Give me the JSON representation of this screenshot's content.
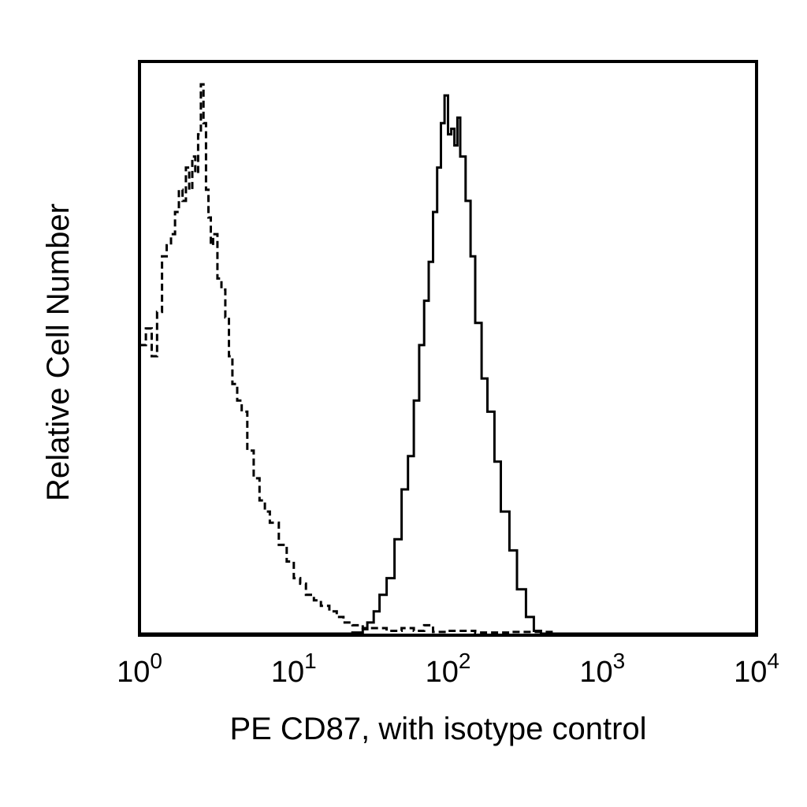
{
  "chart_data": {
    "type": "line",
    "xlabel": "PE CD87, with isotype control",
    "ylabel": "Relative Cell Number",
    "x_scale": "log",
    "xlim": [
      1,
      10000
    ],
    "ylim": [
      0,
      1
    ],
    "grid": false,
    "legend": "none",
    "x_ticks": [
      {
        "value": 1,
        "base": "10",
        "exp": "0"
      },
      {
        "value": 10,
        "base": "10",
        "exp": "1"
      },
      {
        "value": 100,
        "base": "10",
        "exp": "2"
      },
      {
        "value": 1000,
        "base": "10",
        "exp": "3"
      },
      {
        "value": 10000,
        "base": "10",
        "exp": "4"
      }
    ],
    "series": [
      {
        "style": "dashed",
        "color": "#000000",
        "x": [
          1.0,
          1.1,
          1.2,
          1.3,
          1.4,
          1.5,
          1.6,
          1.7,
          1.8,
          1.9,
          2.0,
          2.1,
          2.2,
          2.3,
          2.4,
          2.5,
          2.6,
          2.7,
          2.8,
          2.9,
          3.0,
          3.2,
          3.4,
          3.6,
          3.8,
          4.0,
          4.3,
          4.6,
          5.0,
          5.5,
          6.0,
          6.5,
          7.0,
          7.5,
          8.0,
          9.0,
          10.0,
          11.0,
          12.0,
          13.5,
          15.0,
          17.0,
          19.0,
          21.0,
          24.0,
          28.0,
          33.0,
          40.0,
          50.0,
          60.0,
          70.0,
          80.0,
          100.0,
          150.0,
          250.0,
          500.0,
          1000.0,
          10000.0
        ],
        "y": [
          0.52,
          0.55,
          0.5,
          0.58,
          0.68,
          0.7,
          0.72,
          0.76,
          0.8,
          0.78,
          0.84,
          0.8,
          0.86,
          0.83,
          0.9,
          0.99,
          0.92,
          0.8,
          0.75,
          0.7,
          0.72,
          0.64,
          0.62,
          0.57,
          0.5,
          0.45,
          0.42,
          0.4,
          0.33,
          0.28,
          0.24,
          0.22,
          0.2,
          0.2,
          0.16,
          0.13,
          0.1,
          0.09,
          0.07,
          0.06,
          0.05,
          0.04,
          0.03,
          0.02,
          0.015,
          0.01,
          0.01,
          0.005,
          0.01,
          0.005,
          0.015,
          0.003,
          0.005,
          0.002,
          0.003,
          0.0,
          0.0,
          0.0
        ]
      },
      {
        "style": "solid",
        "color": "#000000",
        "x": [
          1.0,
          10.0,
          20.0,
          24.0,
          28.0,
          30.0,
          33.0,
          36.0,
          40.0,
          45.0,
          50.0,
          55.0,
          60.0,
          65.0,
          70.0,
          75.0,
          80.0,
          85.0,
          90.0,
          95.0,
          100.0,
          105.0,
          110.0,
          115.0,
          120.0,
          130.0,
          140.0,
          150.0,
          165.0,
          180.0,
          200.0,
          220.0,
          250.0,
          280.0,
          320.0,
          360.0,
          400.0,
          1000.0,
          10000.0
        ],
        "y": [
          0.0,
          0.0,
          0.0,
          0.002,
          0.008,
          0.02,
          0.04,
          0.07,
          0.1,
          0.17,
          0.26,
          0.32,
          0.42,
          0.52,
          0.6,
          0.67,
          0.76,
          0.84,
          0.92,
          0.97,
          0.9,
          0.91,
          0.88,
          0.93,
          0.86,
          0.78,
          0.68,
          0.56,
          0.46,
          0.4,
          0.31,
          0.22,
          0.15,
          0.08,
          0.03,
          0.005,
          0.0,
          0.0,
          0.0
        ]
      }
    ]
  }
}
